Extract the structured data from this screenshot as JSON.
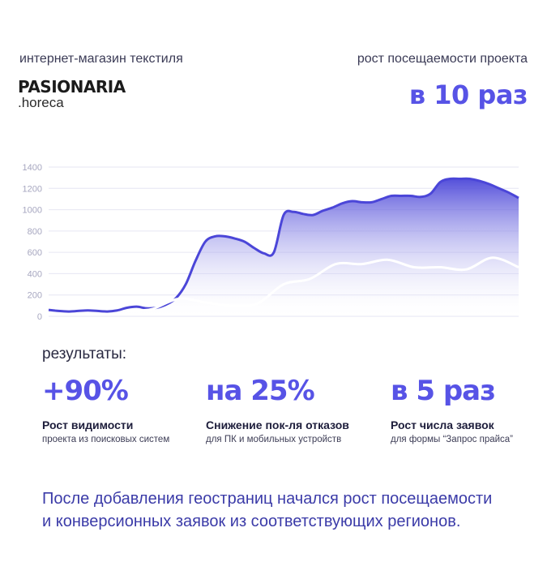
{
  "header": {
    "subtitle_left": "интернет-магазин текстиля",
    "subtitle_right": "рост посещаемости проекта",
    "headline": "в 10 раз",
    "logo_main": "PASIONARIA",
    "logo_sub": ".horeca"
  },
  "chart_data": {
    "type": "area",
    "y_ticks": [
      "1400",
      "1200",
      "1000",
      "800",
      "600",
      "400",
      "200",
      "0"
    ],
    "ylim": [
      0,
      1400
    ],
    "grid": true,
    "x": [
      0,
      1,
      2,
      3,
      4,
      5,
      6,
      7,
      8,
      9,
      10,
      11,
      12,
      13,
      14,
      15,
      16,
      17,
      18,
      19,
      20,
      21,
      22,
      23,
      24,
      25,
      26,
      27,
      28,
      29,
      30,
      31,
      32,
      33,
      34,
      35,
      36,
      37,
      38,
      39,
      40,
      41,
      42,
      43,
      44,
      45,
      46,
      47,
      48
    ],
    "series": [
      {
        "color": "#4b46d8",
        "style": "filled-area",
        "values": [
          60,
          50,
          45,
          50,
          55,
          50,
          45,
          55,
          80,
          90,
          75,
          80,
          110,
          170,
          300,
          520,
          700,
          750,
          750,
          730,
          700,
          640,
          590,
          600,
          950,
          980,
          960,
          950,
          990,
          1020,
          1060,
          1080,
          1070,
          1070,
          1100,
          1130,
          1130,
          1130,
          1120,
          1150,
          1260,
          1290,
          1290,
          1290,
          1270,
          1240,
          1200,
          1160,
          1110
        ],
        "endpoint_gradient": [
          "#4b46d8",
          "#8a86f0"
        ]
      },
      {
        "color": "#ffffff",
        "style": "line",
        "values": [
          null,
          null,
          null,
          null,
          null,
          null,
          null,
          null,
          null,
          null,
          null,
          null,
          null,
          null,
          null,
          null,
          null,
          null,
          null,
          null,
          null,
          null,
          null,
          null,
          null,
          null,
          null,
          null,
          null,
          null,
          null,
          null,
          null,
          null,
          null,
          null,
          null,
          null,
          null,
          null,
          null,
          null,
          null,
          null,
          null,
          null,
          null,
          null,
          null
        ],
        "points": [
          [
            6,
            50
          ],
          [
            7,
            55
          ],
          [
            8,
            70
          ],
          [
            10,
            165
          ],
          [
            12,
            130
          ],
          [
            14,
            100
          ],
          [
            16,
            120
          ],
          [
            18,
            300
          ],
          [
            20,
            350
          ],
          [
            22,
            490
          ],
          [
            24,
            490
          ],
          [
            26,
            530
          ],
          [
            28,
            460
          ],
          [
            30,
            460
          ],
          [
            32,
            440
          ],
          [
            34,
            550
          ],
          [
            36,
            460
          ]
        ]
      }
    ]
  },
  "results": {
    "label": "результаты:",
    "metrics": [
      {
        "big": "+90%",
        "title": "Рост видимости",
        "desc": "проекта из поисковых систем"
      },
      {
        "big": "на 25%",
        "title": "Снижение пок-ля отказов",
        "desc": "для ПК и мобильных устройств"
      },
      {
        "big": "в 5 раз",
        "title": "Рост числа заявок",
        "desc": "для формы “Запрос прайса”"
      }
    ]
  },
  "footer": {
    "line1": "После добавления геостраниц начался рост посещаемости",
    "line2": "и конверсионных заявок из соответствующих регионов."
  },
  "colors": {
    "accent": "#5753e6",
    "text": "#1d1d3b",
    "footer": "#3b3ba8"
  }
}
